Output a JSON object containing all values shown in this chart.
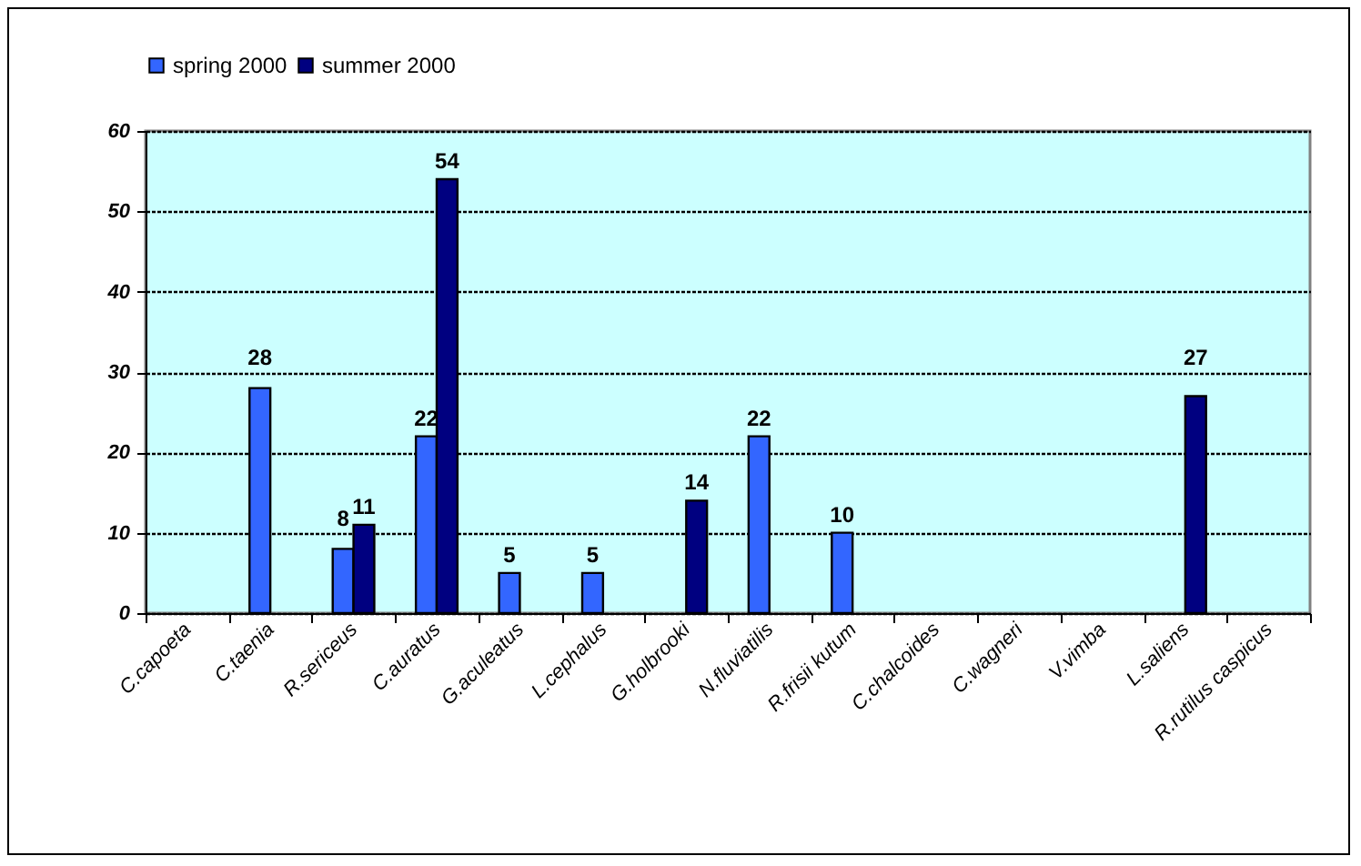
{
  "chart_data": {
    "type": "bar",
    "categories": [
      "C.capoeta",
      "C.taenia",
      "R.sericeus",
      "C.auratus",
      "G.aculeatus",
      "L.cephalus",
      "G.holbrooki",
      "N.fluviatilis",
      "R.frisii kutum",
      "C.chalcoides",
      "C.wagneri",
      "V.vimba",
      "L.saliens",
      "R.rutilus caspicus"
    ],
    "series": [
      {
        "name": "spring 2000",
        "color": "#3366ff",
        "values": [
          null,
          28,
          8,
          22,
          5,
          5,
          null,
          22,
          10,
          null,
          null,
          null,
          null,
          null
        ]
      },
      {
        "name": "summer 2000",
        "color": "#000080",
        "values": [
          null,
          null,
          11,
          54,
          null,
          null,
          14,
          null,
          null,
          null,
          null,
          null,
          27,
          null
        ]
      }
    ],
    "ylim": [
      0,
      60
    ],
    "yticks": [
      0,
      10,
      20,
      30,
      40,
      50,
      60
    ],
    "grid": "y",
    "legend": "top",
    "data_labels": true
  }
}
